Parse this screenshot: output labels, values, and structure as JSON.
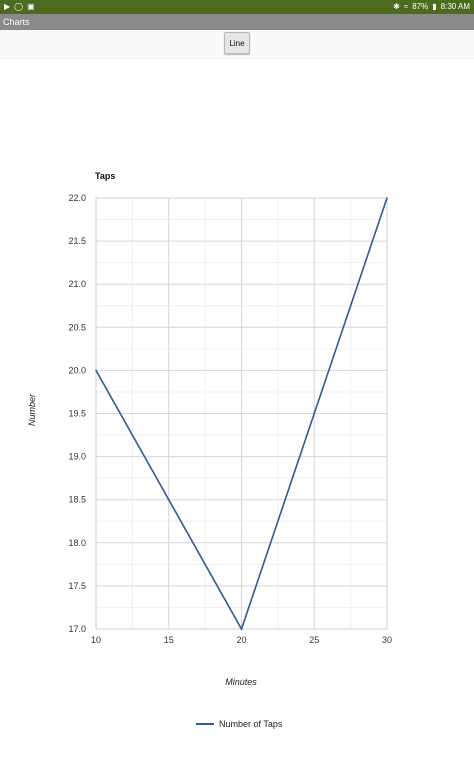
{
  "status_bar": {
    "battery": "87%",
    "time": "8:30 AM"
  },
  "app": {
    "title": "Charts"
  },
  "toolbar": {
    "line_button_label": "Line"
  },
  "chart_data": {
    "type": "line",
    "title": "Taps",
    "xlabel": "Minutes",
    "ylabel": "Number",
    "x": [
      10,
      20,
      30
    ],
    "series": [
      {
        "name": "Number of Taps",
        "values": [
          20.0,
          17.0,
          22.0
        ],
        "color": "#2f5a96"
      }
    ],
    "xlim": [
      10,
      30
    ],
    "ylim": [
      17.0,
      22.0
    ],
    "x_ticks": [
      "10",
      "15",
      "20",
      "25",
      "30"
    ],
    "y_ticks": [
      "17.0",
      "17.5",
      "18.0",
      "18.5",
      "19.0",
      "19.5",
      "20.0",
      "20.5",
      "21.0",
      "21.5",
      "22.0"
    ],
    "grid": true,
    "legend_position": "bottom-center"
  }
}
